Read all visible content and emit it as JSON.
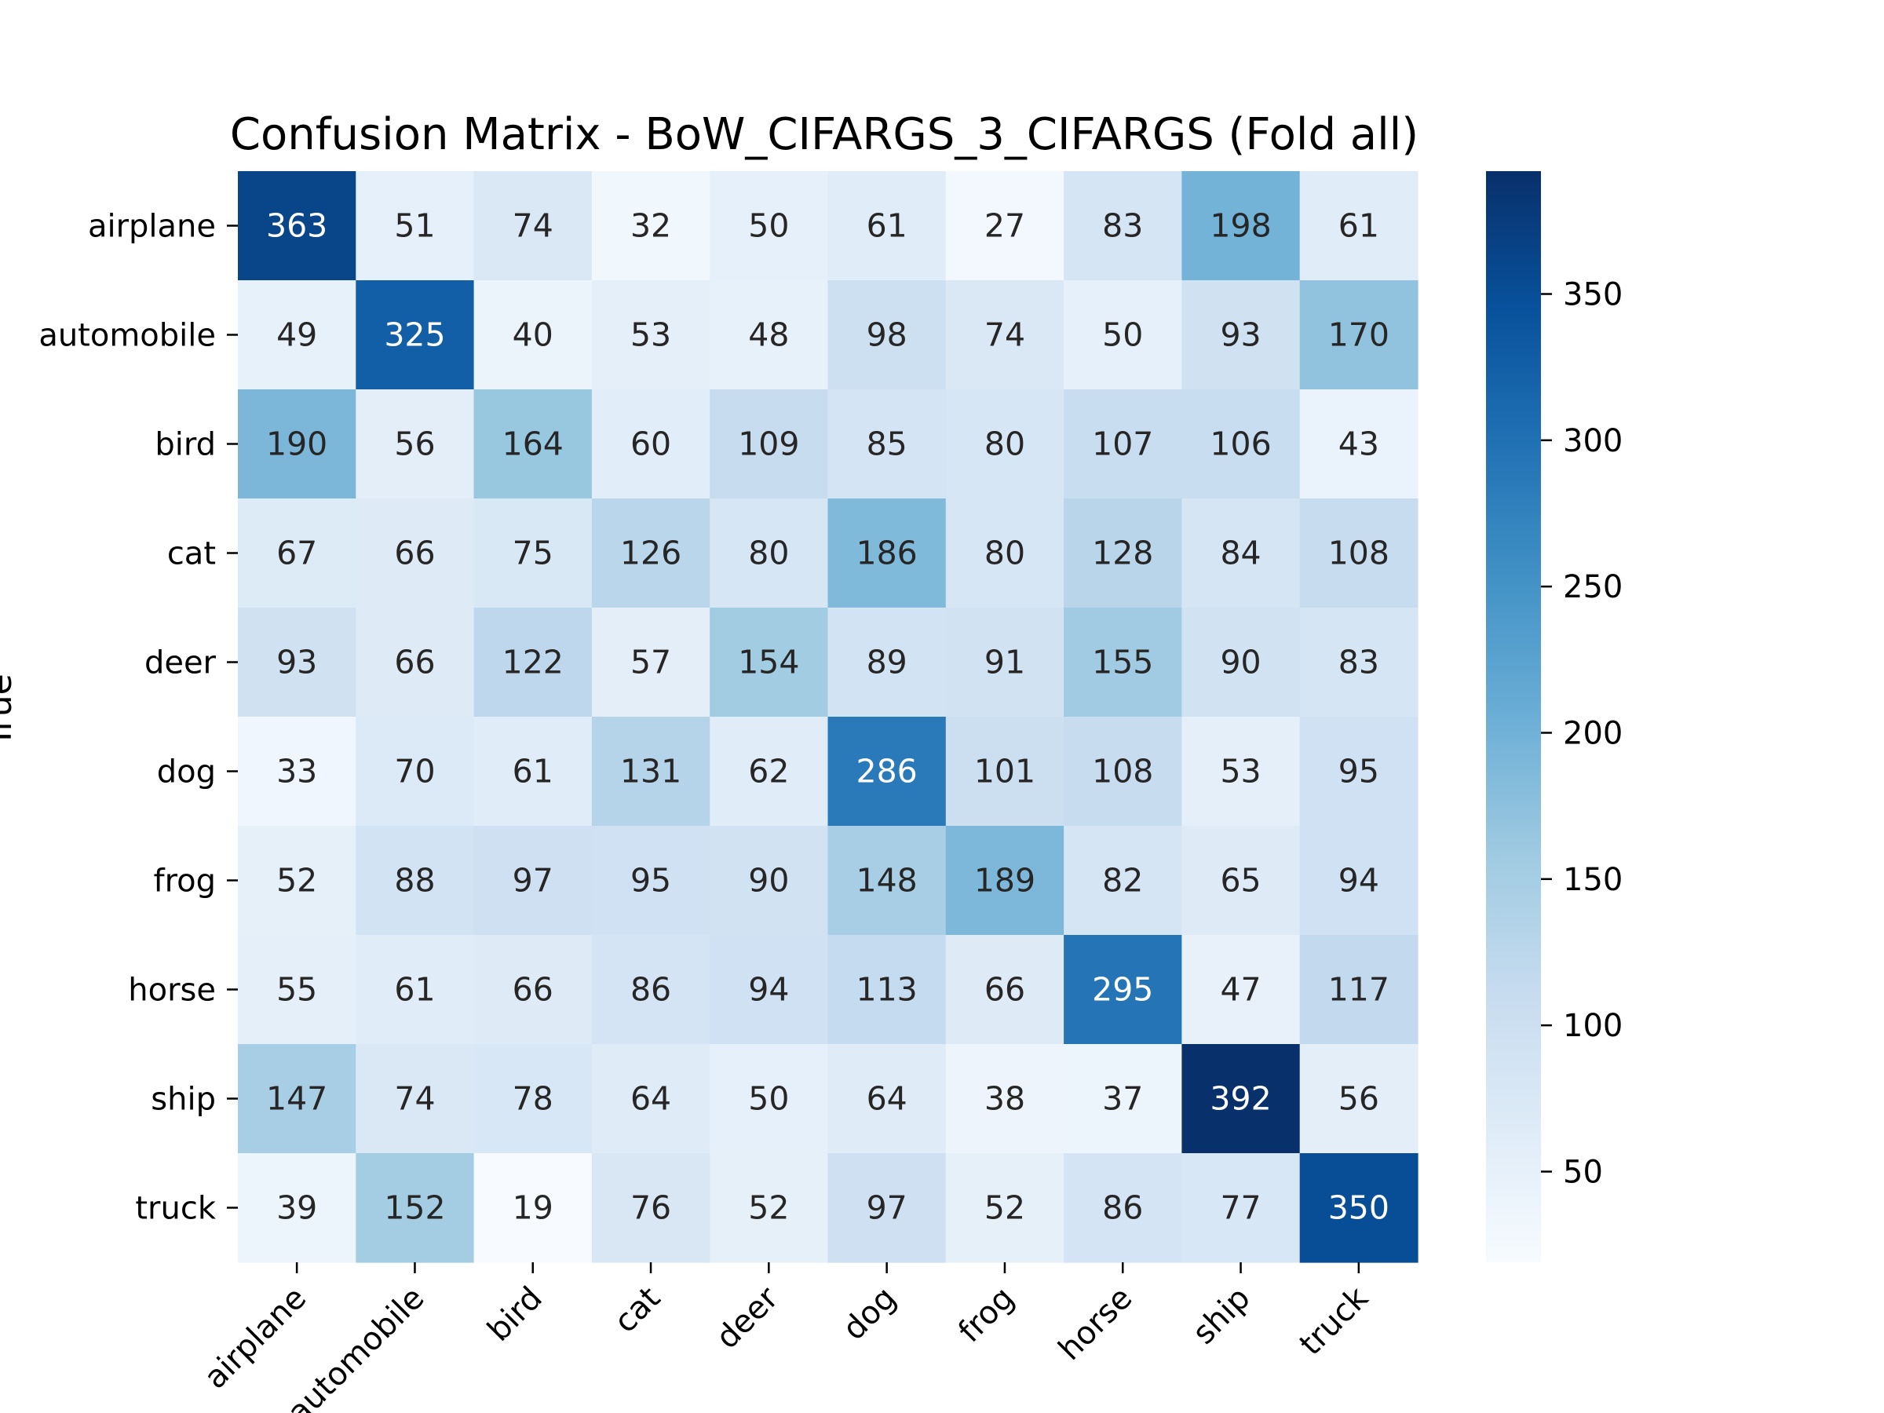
{
  "chart_data": {
    "type": "heatmap",
    "title": "Confusion Matrix - BoW_CIFARGS_3_CIFARGS (Fold all)",
    "xlabel": "",
    "ylabel": "True",
    "x_categories": [
      "airplane",
      "automobile",
      "bird",
      "cat",
      "deer",
      "dog",
      "frog",
      "horse",
      "ship",
      "truck"
    ],
    "y_categories": [
      "airplane",
      "automobile",
      "bird",
      "cat",
      "deer",
      "dog",
      "frog",
      "horse",
      "ship",
      "truck"
    ],
    "values": [
      [
        363,
        51,
        74,
        32,
        50,
        61,
        27,
        83,
        198,
        61
      ],
      [
        49,
        325,
        40,
        53,
        48,
        98,
        74,
        50,
        93,
        170
      ],
      [
        190,
        56,
        164,
        60,
        109,
        85,
        80,
        107,
        106,
        43
      ],
      [
        67,
        66,
        75,
        126,
        80,
        186,
        80,
        128,
        84,
        108
      ],
      [
        93,
        66,
        122,
        57,
        154,
        89,
        91,
        155,
        90,
        83
      ],
      [
        33,
        70,
        61,
        131,
        62,
        286,
        101,
        108,
        53,
        95
      ],
      [
        52,
        88,
        97,
        95,
        90,
        148,
        189,
        82,
        65,
        94
      ],
      [
        55,
        61,
        66,
        86,
        94,
        113,
        66,
        295,
        47,
        117
      ],
      [
        147,
        74,
        78,
        64,
        50,
        64,
        38,
        37,
        392,
        56
      ],
      [
        39,
        152,
        19,
        76,
        52,
        97,
        52,
        86,
        77,
        350
      ]
    ],
    "colorbar": {
      "colormap": "Blues",
      "vmin": 19,
      "vmax": 392,
      "ticks": [
        50,
        100,
        150,
        200,
        250,
        300,
        350
      ]
    },
    "colors": {
      "light_text": "#ffffff",
      "dark_text": "#262626"
    }
  }
}
